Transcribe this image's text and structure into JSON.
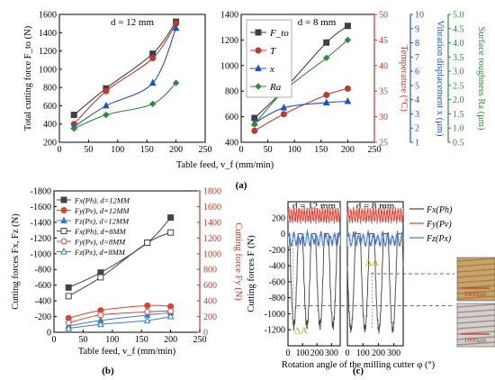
{
  "panel_labels": {
    "a": "(a)",
    "b": "(b)",
    "c": "(c)"
  },
  "colors": {
    "Fto": "#404040",
    "T": "#c0392b",
    "x": "#1f4fd1",
    "Ra": "#2e8b3a",
    "Fx": "#444444",
    "Fy": "#e04030",
    "Fz": "#3a78d0",
    "axis_red": "#c0392b",
    "axis_blue": "#1f4fd1",
    "axis_green": "#2e8b3a",
    "dashed_purple": "#7a52c8",
    "dashed_gold": "#c8a020",
    "band_gray": "#eeeeee",
    "band_pink": "#f7dada"
  },
  "chart_data": [
    {
      "id": "a1",
      "type": "line",
      "title": "d = 12 mm",
      "xlabel": "Table feed, v_f (mm/min)",
      "ylabel": "Total cutting force F_to (N)",
      "xlim": [
        0,
        250
      ],
      "ylim": [
        200,
        1600
      ],
      "xticks": [
        0,
        50,
        100,
        150,
        200,
        250
      ],
      "yticks": [
        200,
        400,
        600,
        800,
        1000,
        1200,
        1400,
        1600
      ],
      "x": [
        25,
        80,
        160,
        200
      ],
      "series": [
        {
          "name": "F_to",
          "color": "#404040",
          "marker": "square",
          "values": [
            500,
            790,
            1170,
            1520
          ],
          "axis": "left"
        },
        {
          "name": "T",
          "color": "#c0392b",
          "marker": "circle",
          "values": [
            400,
            760,
            1120,
            1500
          ],
          "axis": "left"
        },
        {
          "name": "x",
          "color": "#1f4fd1",
          "marker": "triangle",
          "values": [
            370,
            600,
            850,
            1450
          ],
          "axis": "left"
        },
        {
          "name": "Ra",
          "color": "#2e8b3a",
          "marker": "diamond",
          "values": [
            350,
            500,
            620,
            850
          ],
          "axis": "left"
        }
      ]
    },
    {
      "id": "a2",
      "type": "line",
      "title": "d = 8 mm",
      "xlabel": "",
      "ylabel": "",
      "xlim": [
        0,
        250
      ],
      "ylim": [
        400,
        1400
      ],
      "xticks": [
        0,
        50,
        100,
        150,
        200,
        250
      ],
      "yticks": [
        400,
        600,
        800,
        1000,
        1200,
        1400
      ],
      "right_axes": [
        {
          "label": "Temperature (°C)",
          "color": "#c0392b",
          "range": [
            25,
            50
          ],
          "ticks": [
            25,
            30,
            35,
            40,
            45,
            50
          ]
        },
        {
          "label": "Vibration displacement x (μm)",
          "color": "#1f4fd1",
          "range": [
            1,
            10
          ],
          "ticks": [
            1,
            2,
            3,
            4,
            5,
            6,
            7,
            8,
            9,
            10
          ]
        },
        {
          "label": "Surface roughness Ra (μm)",
          "color": "#2e8b3a",
          "range": [
            0.5,
            5.0
          ],
          "ticks": [
            0.5,
            1.0,
            1.5,
            2.0,
            2.5,
            3.0,
            3.5,
            4.0,
            4.5,
            5.0
          ]
        }
      ],
      "legend_placement": "top-left",
      "x": [
        25,
        80,
        160,
        200
      ],
      "series": [
        {
          "name": "F_to",
          "color": "#404040",
          "marker": "square",
          "values": [
            590,
            810,
            1180,
            1310
          ]
        },
        {
          "name": "T",
          "color": "#c0392b",
          "marker": "circle",
          "values": [
            490,
            620,
            770,
            820
          ]
        },
        {
          "name": "x",
          "color": "#1f4fd1",
          "marker": "triangle",
          "values": [
            550,
            670,
            710,
            720
          ]
        },
        {
          "name": "Ra",
          "color": "#2e8b3a",
          "marker": "diamond",
          "values": [
            540,
            800,
            1060,
            1200
          ]
        }
      ]
    },
    {
      "id": "b",
      "type": "line",
      "title": "",
      "xlabel": "Table feed, v_f (mm/min)",
      "ylabel": "Cutting forces Fx, Fz (N)",
      "ylabel_right": "Cutting force Fy (N)",
      "xlim": [
        0,
        250
      ],
      "ylim_left": [
        0,
        -1800
      ],
      "ylim_right": [
        0,
        1800
      ],
      "xticks": [
        0,
        50,
        100,
        150,
        200,
        250
      ],
      "yticks_left": [
        "0",
        "-200",
        "-400",
        "-600",
        "-800",
        "-1000",
        "-1200",
        "-1400",
        "-1600",
        "-1800"
      ],
      "yticks_right": [
        "0",
        "200",
        "400",
        "600",
        "800",
        "1000",
        "1200",
        "1400",
        "1600",
        "1800"
      ],
      "x": [
        25,
        80,
        160,
        200
      ],
      "series": [
        {
          "name": "Fx(Ph), d=12MM",
          "color": "#444444",
          "marker": "square",
          "values": [
            -570,
            -760,
            -1140,
            -1460
          ]
        },
        {
          "name": "Fy(Pv), d=12MM",
          "color": "#e04030",
          "marker": "circle",
          "values": [
            180,
            280,
            340,
            330
          ]
        },
        {
          "name": "Fz(Px), d=12MM",
          "color": "#3a78d0",
          "marker": "triangle",
          "values": [
            -80,
            -150,
            -220,
            -250
          ]
        },
        {
          "name": "Fx(Ph), d=8MM",
          "color": "#444444",
          "marker": "square-open",
          "values": [
            -460,
            -700,
            -1140,
            -1270
          ]
        },
        {
          "name": "Fy(Pv), d=8MM",
          "color": "#e04030",
          "marker": "circle-open",
          "values": [
            120,
            220,
            260,
            270
          ]
        },
        {
          "name": "Fz(Px), d=8MM",
          "color": "#3a78d0",
          "marker": "triangle-open",
          "values": [
            -50,
            -100,
            -150,
            -200
          ]
        }
      ]
    },
    {
      "id": "c1",
      "type": "line",
      "title": "d = 12 mm",
      "xlabel": "Rotation angle of the milling cutter φ (°)",
      "ylabel": "Cutting forces F (N)",
      "xlim": [
        0,
        360
      ],
      "ylim": [
        -1400,
        400
      ],
      "xticks": [
        0,
        100,
        200,
        300
      ],
      "yticks": [
        200,
        0,
        -200,
        -400,
        -600,
        -800,
        -1000,
        -1200
      ],
      "annotation": "ΔA",
      "legend_placement": "right"
    },
    {
      "id": "c2",
      "type": "line",
      "title": "d = 8 mm",
      "xlim": [
        0,
        360
      ],
      "ylim": [
        -1400,
        400
      ],
      "xticks": [
        0,
        100,
        200,
        300
      ],
      "annotation": "ΔA",
      "legend": [
        "Fx(Ph)",
        "Fy(Pv)",
        "Fz(Px)"
      ],
      "legend_colors": [
        "#444444",
        "#e04030",
        "#3a78d0"
      ],
      "scale_bars": [
        "1000μm",
        "1000μm"
      ]
    }
  ]
}
